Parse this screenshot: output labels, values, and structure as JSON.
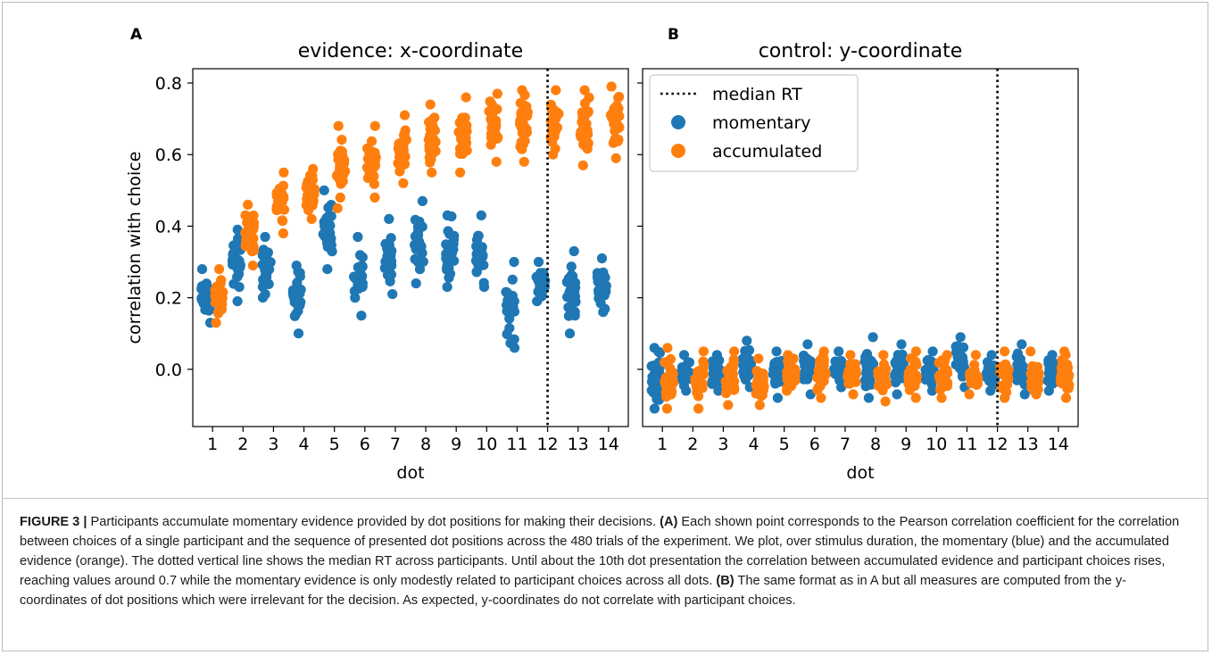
{
  "chart_data": [
    {
      "panel_label": "A",
      "title": "evidence: x-coordinate",
      "type": "scatter",
      "xlabel": "dot",
      "ylabel": "correlation with choice",
      "x_ticks": [
        "1",
        "2",
        "3",
        "4",
        "5",
        "6",
        "7",
        "8",
        "9",
        "10",
        "11",
        "12",
        "13",
        "14"
      ],
      "y_ticks": [
        "0.0",
        "0.2",
        "0.4",
        "0.6",
        "0.8"
      ],
      "ylim": [
        -0.16,
        0.84
      ],
      "median_rt_dot": 12,
      "series": [
        {
          "key": "momentary",
          "color": "#1f77b4",
          "min": [
            0.13,
            0.19,
            0.2,
            0.1,
            0.28,
            0.15,
            0.21,
            0.24,
            0.23,
            0.23,
            0.06,
            0.19,
            0.1,
            0.16
          ],
          "max": [
            0.28,
            0.39,
            0.37,
            0.29,
            0.5,
            0.37,
            0.42,
            0.47,
            0.43,
            0.43,
            0.3,
            0.3,
            0.33,
            0.31
          ]
        },
        {
          "key": "accumulated",
          "color": "#ff7f0e",
          "min": [
            0.13,
            0.29,
            0.38,
            0.42,
            0.45,
            0.48,
            0.52,
            0.55,
            0.55,
            0.58,
            0.58,
            0.6,
            0.57,
            0.59
          ],
          "max": [
            0.28,
            0.46,
            0.55,
            0.56,
            0.68,
            0.68,
            0.71,
            0.74,
            0.76,
            0.77,
            0.78,
            0.78,
            0.78,
            0.79
          ]
        }
      ]
    },
    {
      "panel_label": "B",
      "title": "control: y-coordinate",
      "type": "scatter",
      "xlabel": "dot",
      "x_ticks": [
        "1",
        "2",
        "3",
        "4",
        "5",
        "6",
        "7",
        "8",
        "9",
        "10",
        "11",
        "12",
        "13",
        "14"
      ],
      "ylim": [
        -0.16,
        0.84
      ],
      "median_rt_dot": 12,
      "legend_position": "upper-left",
      "legend": [
        {
          "label": "median RT",
          "style": "dotted-line"
        },
        {
          "label": "momentary",
          "style": "dot",
          "color": "#1f77b4"
        },
        {
          "label": "accumulated",
          "style": "dot",
          "color": "#ff7f0e"
        }
      ],
      "series": [
        {
          "key": "momentary",
          "color": "#1f77b4",
          "min": [
            -0.11,
            -0.06,
            -0.06,
            -0.05,
            -0.08,
            -0.07,
            -0.05,
            -0.08,
            -0.07,
            -0.06,
            -0.05,
            -0.06,
            -0.07,
            -0.06
          ],
          "max": [
            0.06,
            0.04,
            0.04,
            0.08,
            0.05,
            0.07,
            0.05,
            0.09,
            0.07,
            0.05,
            0.09,
            0.04,
            0.07,
            0.04
          ]
        },
        {
          "key": "accumulated",
          "color": "#ff7f0e",
          "min": [
            -0.11,
            -0.11,
            -0.1,
            -0.1,
            -0.06,
            -0.08,
            -0.07,
            -0.09,
            -0.08,
            -0.08,
            -0.07,
            -0.08,
            -0.07,
            -0.08
          ],
          "max": [
            0.06,
            0.05,
            0.05,
            0.03,
            0.04,
            0.05,
            0.04,
            0.04,
            0.05,
            0.04,
            0.04,
            0.05,
            0.05,
            0.05
          ]
        }
      ]
    }
  ],
  "caption": {
    "figure_label": "FIGURE 3 |",
    "intro": " Participants accumulate momentary evidence provided by dot positions for making their decisions. ",
    "part_a_label": "(A)",
    "part_a_text": " Each shown point corresponds to the Pearson correlation coefficient for the correlation between choices of a single participant and the sequence of presented dot positions across the 480 trials of the experiment. We plot, over stimulus duration, the momentary (blue) and the accumulated evidence (orange). The dotted vertical line shows the median RT across participants. Until about the 10th dot presentation the correlation between accumulated evidence and participant choices rises, reaching values around 0.7 while the momentary evidence is only modestly related to participant choices across all dots. ",
    "part_b_label": "(B)",
    "part_b_text": " The same format as in A but all measures are computed from the y-coordinates of dot positions which were irrelevant for the decision. As expected, y-coordinates do not correlate with participant choices."
  }
}
